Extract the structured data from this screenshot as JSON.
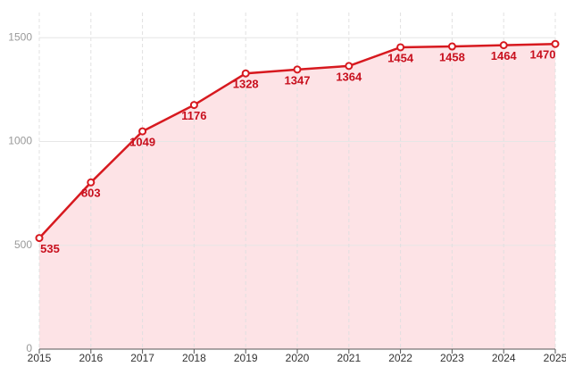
{
  "chart_data": {
    "type": "area-line",
    "x": [
      2015,
      2016,
      2017,
      2018,
      2019,
      2020,
      2021,
      2022,
      2023,
      2024,
      2025
    ],
    "values": [
      535,
      803,
      1049,
      1176,
      1328,
      1347,
      1364,
      1454,
      1458,
      1464,
      1470
    ],
    "color": "#d7191f",
    "fill_color": "#fde3e6",
    "xlim": [
      2015,
      2025
    ],
    "xticks": [
      2015,
      2016,
      2017,
      2018,
      2019,
      2020,
      2021,
      2022,
      2023,
      2024,
      2025
    ],
    "ylim": [
      0,
      1600
    ],
    "yticks": [
      0,
      500,
      1000,
      1500
    ],
    "grid": true,
    "data_labels": true
  }
}
